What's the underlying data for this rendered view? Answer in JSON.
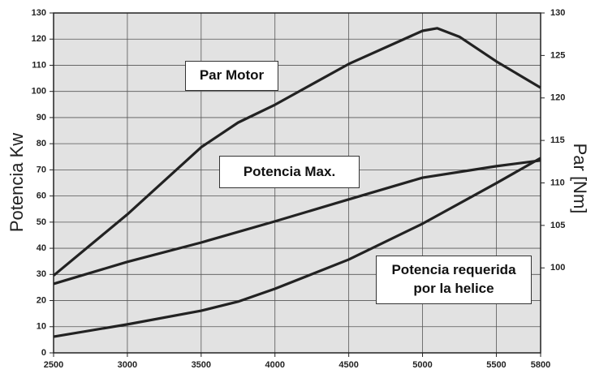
{
  "chart_data": {
    "type": "line",
    "ylabel": "Potencia Kw",
    "y2label": "Par [Nm]",
    "x": [
      2500,
      3000,
      3500,
      3750,
      4000,
      4500,
      5000,
      5100,
      5250,
      5500,
      5800
    ],
    "series": [
      {
        "name": "Par Motor",
        "color": "#222222",
        "axis": "y2",
        "values": [
          99.1,
          106.3,
          114.2,
          117.1,
          119.2,
          124.0,
          127.9,
          128.2,
          127.2,
          124.3,
          121.2
        ]
      },
      {
        "name": "Potencia Max.",
        "color": "#222222",
        "values": [
          26.4,
          34.8,
          42.2,
          null,
          50.3,
          58.7,
          67.0,
          null,
          null,
          71.4,
          73.6
        ]
      },
      {
        "name": "Potencia requerida por la helice",
        "color": "#222222",
        "values": [
          6.2,
          10.9,
          16.1,
          19.6,
          24.5,
          35.7,
          49.4,
          null,
          null,
          64.9,
          74.5
        ]
      }
    ],
    "xlim": [
      2500,
      5800
    ],
    "xticks": [
      2500,
      3000,
      3500,
      4000,
      4500,
      5000,
      5500,
      5800
    ],
    "ylim": [
      0,
      130
    ],
    "yticks": [
      0,
      10,
      20,
      30,
      40,
      50,
      60,
      70,
      80,
      90,
      100,
      110,
      120,
      130
    ],
    "y2lim": [
      90,
      130
    ],
    "y2ticks": [
      100,
      105,
      110,
      115,
      120,
      125,
      130
    ],
    "grid": true
  }
}
